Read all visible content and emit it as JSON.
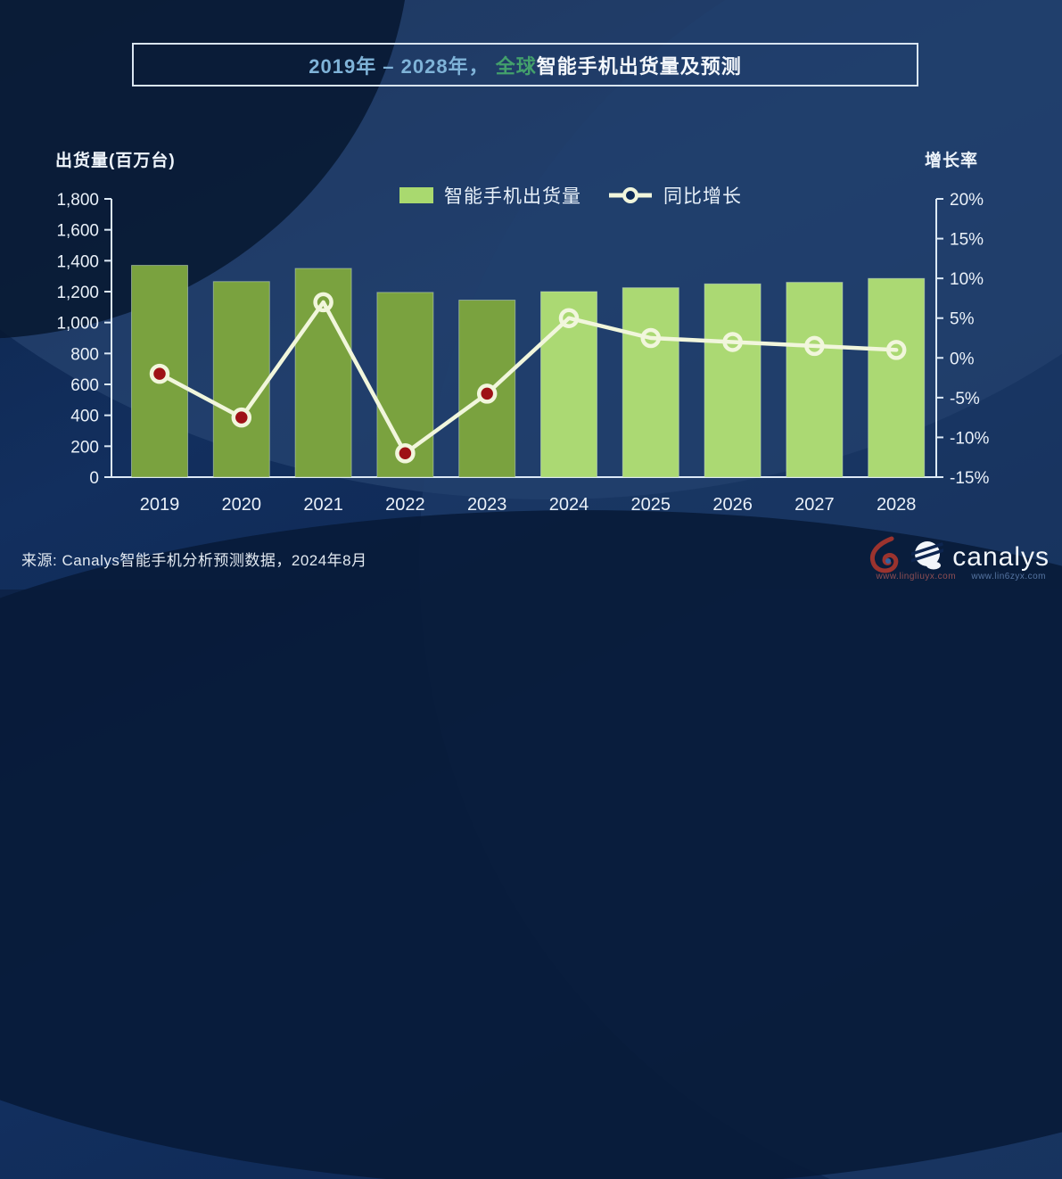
{
  "title": {
    "range": "2019年 – 2028年， ",
    "scope": "全球",
    "main": "智能手机出货量及预测"
  },
  "legend": {
    "bar_label": "智能手机出货量",
    "line_label": "同比增长"
  },
  "source": "来源: Canalys智能手机分析预测数据，2024年8月",
  "logo": {
    "brand": "canalys",
    "watermark1": "www.lingliuyx.com",
    "watermark2": "www.lin6zyx.com"
  },
  "colors": {
    "background": "#0e2a57",
    "bar_actual": "#7aa23f",
    "bar_forecast": "#abd973",
    "bar_border": "#d8e8da",
    "line": "#f1f6dc",
    "marker_negative_fill": "#9e1216",
    "axis": "#dce9f6",
    "axis_text": "#eaf1f9",
    "title_range": "#7fb3d8",
    "title_scope": "#43a06c",
    "title_main": "#f4f8fc"
  },
  "chart_data": {
    "type": "bar",
    "combo": "bar+line",
    "title": "2019年 – 2028年，全球智能手机出货量及预测",
    "categories": [
      "2019",
      "2020",
      "2021",
      "2022",
      "2023",
      "2024",
      "2025",
      "2026",
      "2027",
      "2028"
    ],
    "series": [
      {
        "name": "智能手机出货量",
        "type": "bar",
        "axis": "left",
        "unit": "百万台",
        "values": [
          1370,
          1265,
          1350,
          1195,
          1145,
          1200,
          1225,
          1250,
          1260,
          1285
        ],
        "forecast_from_index": 5
      },
      {
        "name": "同比增长",
        "type": "line",
        "axis": "right",
        "unit": "%",
        "values": [
          -2,
          -7.5,
          7,
          -12,
          -4.5,
          5,
          2.5,
          2,
          1.5,
          1
        ]
      }
    ],
    "left_axis": {
      "title": "出货量(百万台)",
      "min": 0,
      "max": 1800,
      "step": 200
    },
    "right_axis": {
      "title": "增长率",
      "min": -15,
      "max": 20,
      "step": 5,
      "format": "percent"
    },
    "legend_position": "top-center",
    "grid": false
  }
}
